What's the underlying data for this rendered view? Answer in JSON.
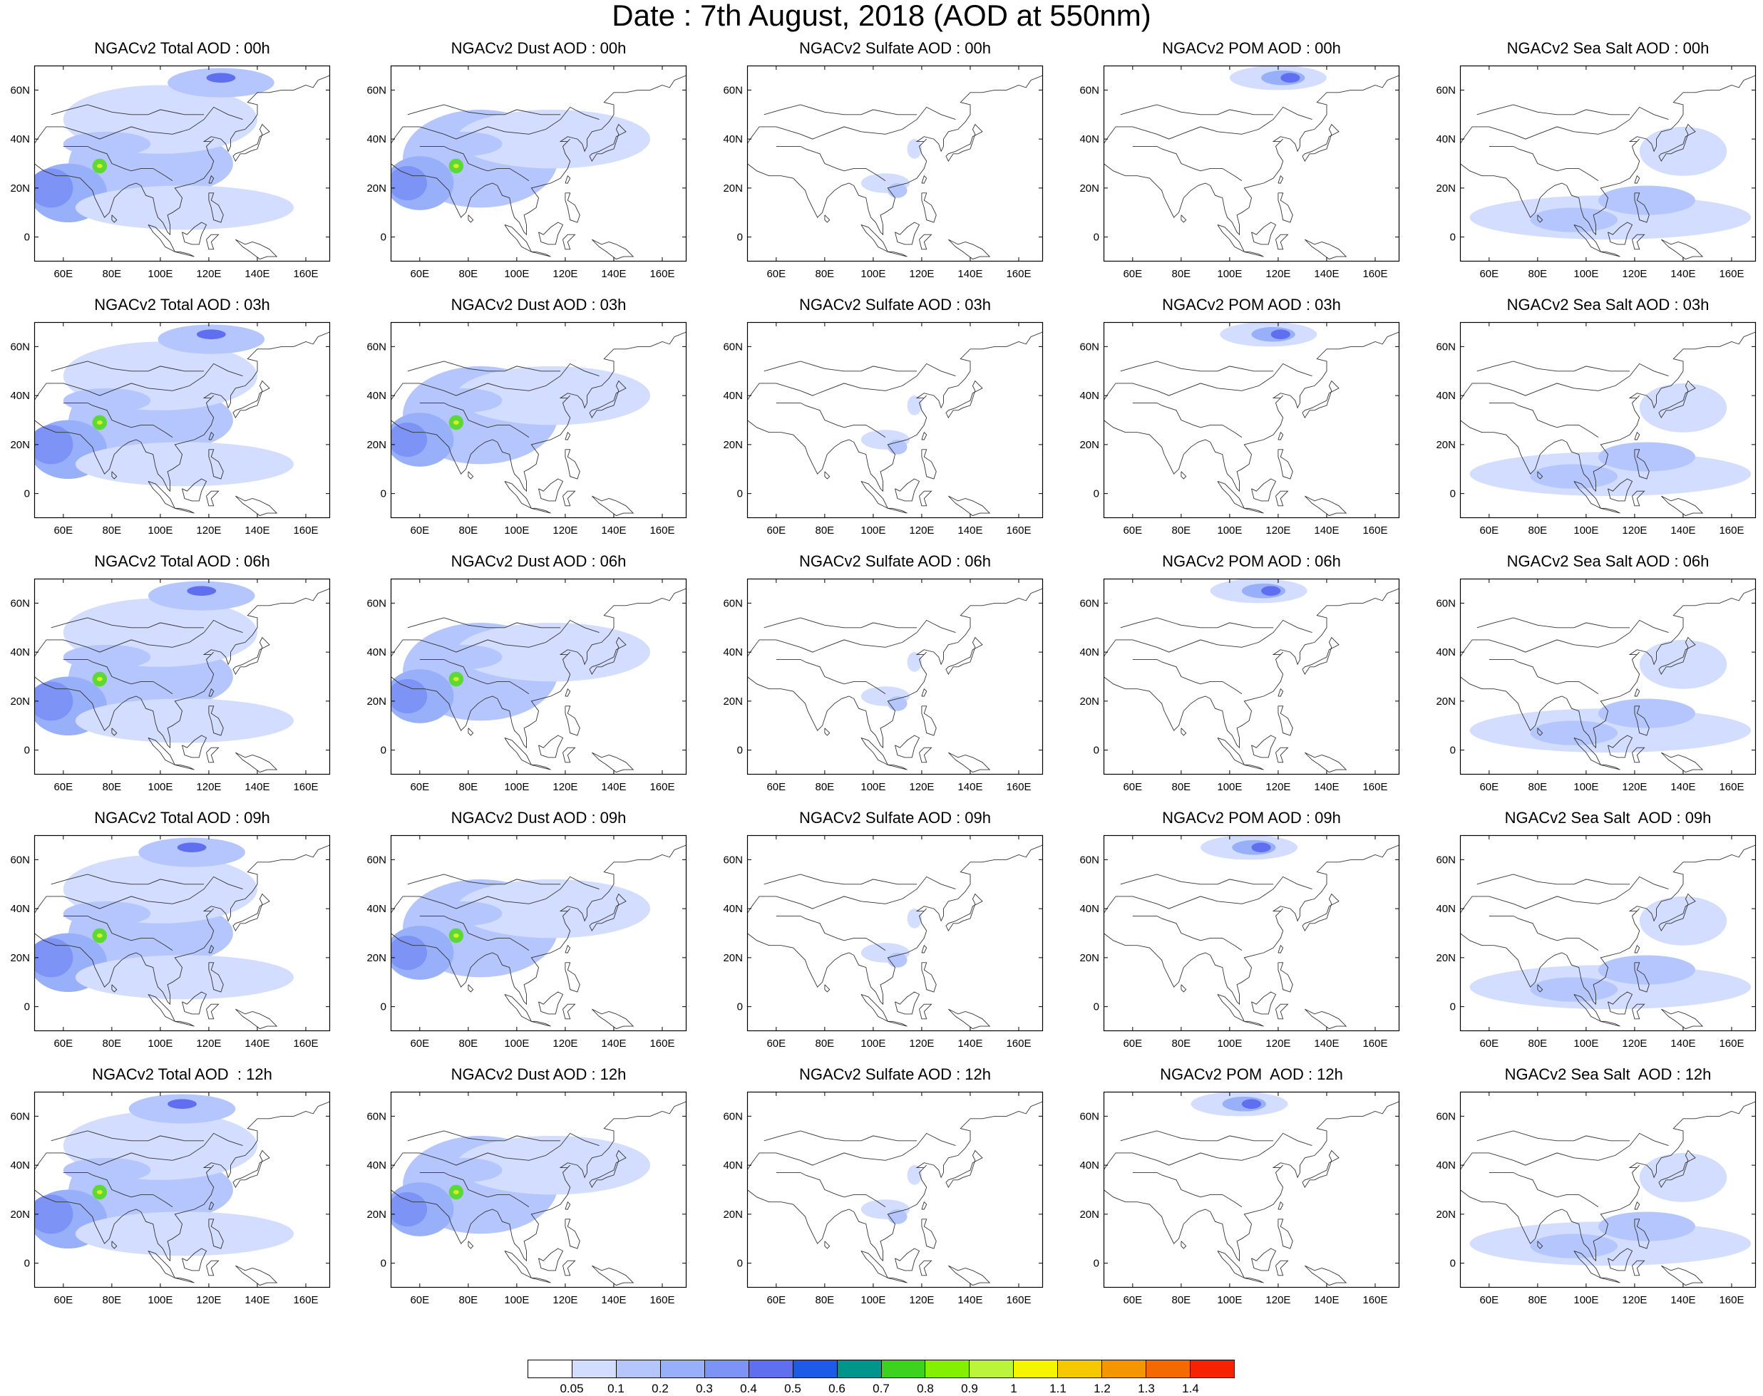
{
  "title": "Date : 7th August, 2018 (AOD at 550nm)",
  "panel_titles": [
    [
      "NGACv2 Total AOD : 00h",
      "NGACv2 Dust AOD : 00h",
      "NGACv2 Sulfate AOD : 00h",
      "NGACv2 POM AOD : 00h",
      "NGACv2 Sea Salt AOD : 00h"
    ],
    [
      "NGACv2 Total AOD : 03h",
      "NGACv2 Dust AOD : 03h",
      "NGACv2 Sulfate AOD : 03h",
      "NGACv2 POM AOD : 03h",
      "NGACv2 Sea Salt AOD : 03h"
    ],
    [
      "NGACv2 Total AOD : 06h",
      "NGACv2 Dust AOD : 06h",
      "NGACv2 Sulfate AOD : 06h",
      "NGACv2 POM AOD : 06h",
      "NGACv2 Sea Salt AOD : 06h"
    ],
    [
      "NGACv2 Total AOD : 09h",
      "NGACv2 Dust AOD : 09h",
      "NGACv2 Sulfate AOD : 09h",
      "NGACv2 POM AOD : 09h",
      "NGACv2 Sea Salt  AOD : 09h"
    ],
    [
      "NGACv2 Total AOD  : 12h",
      "NGACv2 Dust AOD : 12h",
      "NGACv2 Sulfate AOD : 12h",
      "NGACv2 POM  AOD : 12h",
      "NGACv2 Sea Salt  AOD : 12h"
    ]
  ],
  "map_extent": {
    "lon": [
      48,
      170
    ],
    "lat": [
      -10,
      70
    ]
  },
  "x_ticks": [
    {
      "value": 60,
      "label": "60E"
    },
    {
      "value": 80,
      "label": "80E"
    },
    {
      "value": 100,
      "label": "100E"
    },
    {
      "value": 120,
      "label": "120E"
    },
    {
      "value": 140,
      "label": "140E"
    },
    {
      "value": 160,
      "label": "160E"
    }
  ],
  "y_ticks": [
    {
      "value": 0,
      "label": "0"
    },
    {
      "value": 20,
      "label": "20N"
    },
    {
      "value": 40,
      "label": "40N"
    },
    {
      "value": 60,
      "label": "60N"
    }
  ],
  "colorbar": {
    "labels": [
      "0.05",
      "0.1",
      "0.2",
      "0.3",
      "0.4",
      "0.5",
      "0.6",
      "0.7",
      "0.8",
      "0.9",
      "1",
      "1.1",
      "1.2",
      "1.3",
      "1.4"
    ],
    "colors": [
      "#ffffff",
      "#d2ddff",
      "#b4c6fd",
      "#98aff9",
      "#7d93f5",
      "#5f6ff0",
      "#1d5ae8",
      "#00958a",
      "#3cd21e",
      "#82f000",
      "#baf53c",
      "#f5f500",
      "#f5c800",
      "#f59600",
      "#f56a00",
      "#f52300"
    ]
  },
  "field_legend_colors": {
    "l1": "#d2ddff",
    "l2": "#b4c6fd",
    "l3": "#98aff9",
    "l4": "#7d93f5",
    "l5": "#5f6ff0",
    "green": "#5cd838",
    "yellow": "#d8f020"
  },
  "aod_blobs": {
    "total": [
      {
        "lon": 90,
        "lat": 28,
        "rlon": 28,
        "rlat": 22,
        "level": 2
      },
      {
        "lon": 62,
        "lat": 18,
        "rlon": 16,
        "rlat": 12,
        "level": 3
      },
      {
        "lon": 55,
        "lat": 20,
        "rlon": 9,
        "rlat": 8,
        "level": 4
      },
      {
        "lon": 105,
        "lat": 30,
        "rlon": 25,
        "rlat": 12,
        "level": 2
      },
      {
        "lon": 110,
        "lat": 12,
        "rlon": 45,
        "rlat": 9,
        "level": 1
      },
      {
        "lon": 100,
        "lat": 48,
        "rlon": 40,
        "rlat": 14,
        "level": 1
      },
      {
        "lon": 78,
        "lat": 38,
        "rlon": 18,
        "rlat": 5,
        "level": 2
      },
      {
        "lon": 125,
        "lat": 63,
        "rlon": 22,
        "rlat": 6,
        "level": 2
      },
      {
        "lon": 125,
        "lat": 65,
        "rlon": 6,
        "rlat": 2,
        "level": 5
      },
      {
        "lon": 75,
        "lat": 29,
        "rlon": 3,
        "rlat": 3,
        "level": 7
      }
    ],
    "dust": [
      {
        "lon": 85,
        "lat": 32,
        "rlon": 32,
        "rlat": 20,
        "level": 2
      },
      {
        "lon": 60,
        "lat": 22,
        "rlon": 14,
        "rlat": 11,
        "level": 3
      },
      {
        "lon": 55,
        "lat": 22,
        "rlon": 8,
        "rlat": 7,
        "level": 4
      },
      {
        "lon": 115,
        "lat": 40,
        "rlon": 40,
        "rlat": 12,
        "level": 1
      },
      {
        "lon": 78,
        "lat": 38,
        "rlon": 16,
        "rlat": 5,
        "level": 2
      },
      {
        "lon": 75,
        "lat": 29,
        "rlon": 3,
        "rlat": 3,
        "level": 7
      }
    ],
    "sulfate": [
      {
        "lon": 105,
        "lat": 22,
        "rlon": 10,
        "rlat": 4,
        "level": 1
      },
      {
        "lon": 117,
        "lat": 36,
        "rlon": 3,
        "rlat": 4,
        "level": 1
      },
      {
        "lon": 110,
        "lat": 19,
        "rlon": 4,
        "rlat": 3,
        "level": 2
      }
    ],
    "pom": [
      {
        "lon": 120,
        "lat": 65,
        "rlon": 20,
        "rlat": 5,
        "level": 1
      },
      {
        "lon": 122,
        "lat": 65,
        "rlon": 9,
        "rlat": 3,
        "level": 3
      },
      {
        "lon": 125,
        "lat": 65,
        "rlon": 4,
        "rlat": 2,
        "level": 5
      }
    ],
    "seasalt": [
      {
        "lon": 110,
        "lat": 8,
        "rlon": 58,
        "rlat": 9,
        "level": 1
      },
      {
        "lon": 125,
        "lat": 15,
        "rlon": 20,
        "rlat": 6,
        "level": 2
      },
      {
        "lon": 95,
        "lat": 7,
        "rlon": 18,
        "rlat": 5,
        "level": 2
      },
      {
        "lon": 140,
        "lat": 35,
        "rlon": 18,
        "rlat": 10,
        "level": 1
      }
    ]
  }
}
